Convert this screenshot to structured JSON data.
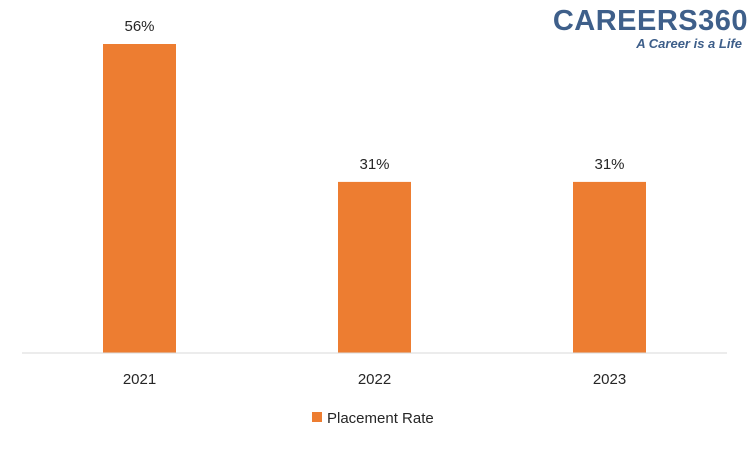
{
  "logo": {
    "name": "CAREERS360",
    "tagline": "A Career is a Life",
    "color": "#3e5f8a"
  },
  "chart_data": {
    "type": "bar",
    "categories": [
      "2021",
      "2022",
      "2023"
    ],
    "series": [
      {
        "name": "Placement Rate",
        "values": [
          56,
          31,
          31
        ],
        "labels": [
          "56%",
          "31%",
          "31%"
        ],
        "color": "#ed7d31"
      }
    ],
    "ylim": [
      0,
      56
    ],
    "grid": false,
    "legend": "bottom",
    "axis_color": "#d9d9d9"
  }
}
